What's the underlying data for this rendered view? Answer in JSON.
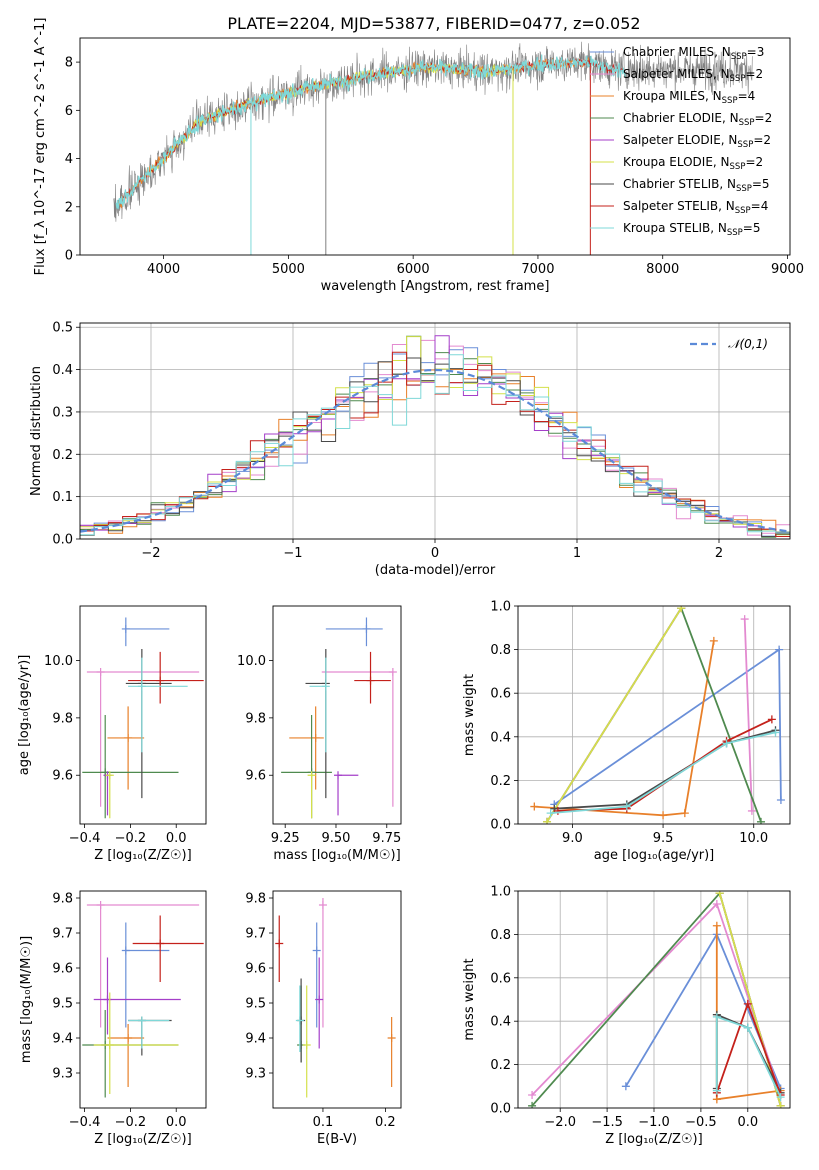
{
  "title": "PLATE=2204, MJD=53877, FIBERID=0477, z=0.052",
  "colors": {
    "Chabrier MILES": "#6a8fd8",
    "Salpeter MILES": "#e38ad0",
    "Kroupa MILES": "#e8802a",
    "Chabrier ELODIE": "#4f8a4f",
    "Salpeter ELODIE": "#a43fc9",
    "Kroupa ELODIE": "#d4e04a",
    "Chabrier STELIB": "#4a4a4a",
    "Salpeter STELIB": "#c4211b",
    "Kroupa STELIB": "#7fd8d8",
    "data": "#808080",
    "normal": "#5b8ad8"
  },
  "chart_data": [
    {
      "id": "spectrum",
      "type": "line",
      "xlabel": "wavelength [Angstrom, rest frame]",
      "ylabel": "Flux [f_λ 10^-17 erg cm^-2 s^-1 A^-1]",
      "xlim": [
        3330,
        9020
      ],
      "ylim": [
        0,
        9
      ],
      "xticks": [
        "4000",
        "5000",
        "6000",
        "7000",
        "8000",
        "9000"
      ],
      "yticks": [
        "0",
        "2",
        "4",
        "6",
        "8"
      ],
      "legend_loc": "upper right",
      "legend": [
        {
          "model": "Chabrier MILES",
          "nssp": "3"
        },
        {
          "model": "Salpeter MILES",
          "nssp": "2"
        },
        {
          "model": "Kroupa MILES",
          "nssp": "4"
        },
        {
          "model": "Chabrier ELODIE",
          "nssp": "2"
        },
        {
          "model": "Salpeter ELODIE",
          "nssp": "2"
        },
        {
          "model": "Kroupa ELODIE",
          "nssp": "2"
        },
        {
          "model": "Chabrier STELIB",
          "nssp": "5"
        },
        {
          "model": "Salpeter STELIB",
          "nssp": "4"
        },
        {
          "model": "Kroupa STELIB",
          "nssp": "5"
        }
      ],
      "continuum": {
        "x": [
          3620,
          3800,
          4000,
          4300,
          4700,
          5200,
          5700,
          6100,
          6600,
          7000,
          7400,
          7600,
          7700
        ],
        "y": [
          2.0,
          3.0,
          4.0,
          5.6,
          6.3,
          7.0,
          7.5,
          7.8,
          7.6,
          7.9,
          8.0,
          7.7,
          7.7
        ]
      },
      "data_range": [
        3600,
        8720
      ],
      "miles_range": [
        3620,
        7410
      ],
      "elodie_range": [
        3900,
        6800
      ],
      "stelib_range": [
        3620,
        7700
      ]
    },
    {
      "id": "residuals",
      "type": "bar",
      "xlabel": "(data-model)/error",
      "ylabel": "Normed distribution",
      "xlim": [
        -2.5,
        2.5
      ],
      "ylim": [
        0,
        0.51
      ],
      "xticks": [
        "−2",
        "−1",
        "0",
        "1",
        "2"
      ],
      "yticks": [
        "0.0",
        "0.1",
        "0.2",
        "0.3",
        "0.4",
        "0.5"
      ],
      "legend": "𝒩(0,1)",
      "bin_width": 0.1
    },
    {
      "id": "age_vs_Z",
      "type": "scatter",
      "xlabel": "Z [log₁₀(Z/Z☉)]",
      "ylabel": "age [log₁₀(age/yr)]",
      "xlim": [
        -0.42,
        0.13
      ],
      "ylim": [
        9.43,
        10.19
      ],
      "xticks": [
        "−0.4",
        "−0.2",
        "0.0"
      ],
      "yticks": [
        "9.6",
        "9.8",
        "10.0"
      ],
      "points": [
        {
          "model": "Chabrier MILES",
          "x": -0.22,
          "xerr": [
            0.0,
            0.19
          ],
          "y": 10.11,
          "yerr": [
            0.06,
            0.04
          ]
        },
        {
          "model": "Salpeter MILES",
          "x": -0.33,
          "xerr": [
            0.06,
            0.43
          ],
          "y": 9.96,
          "yerr": [
            0.47,
            0.0
          ]
        },
        {
          "model": "Kroupa MILES",
          "x": -0.21,
          "xerr": [
            0.09,
            0.07
          ],
          "y": 9.73,
          "yerr": [
            0.18,
            0.11
          ]
        },
        {
          "model": "Chabrier ELODIE",
          "x": -0.31,
          "xerr": [
            0.1,
            0.32
          ],
          "y": 9.61,
          "yerr": [
            0.16,
            0.2
          ]
        },
        {
          "model": "Salpeter ELODIE",
          "x": -0.3,
          "xerr": [
            0.0,
            0.0
          ],
          "y": 9.6,
          "yerr": [
            0.14,
            0.0
          ]
        },
        {
          "model": "Kroupa ELODIE",
          "x": -0.29,
          "xerr": [
            0.0,
            0.0
          ],
          "y": 9.6,
          "yerr": [
            0.15,
            0.0
          ]
        },
        {
          "model": "Chabrier STELIB",
          "x": -0.15,
          "xerr": [
            0.07,
            0.13
          ],
          "y": 9.92,
          "yerr": [
            0.4,
            0.12
          ]
        },
        {
          "model": "Salpeter STELIB",
          "x": -0.07,
          "xerr": [
            0.14,
            0.19
          ],
          "y": 9.93,
          "yerr": [
            0.08,
            0.1
          ]
        },
        {
          "model": "Kroupa STELIB",
          "x": -0.15,
          "xerr": [
            0.06,
            0.2
          ],
          "y": 9.91,
          "yerr": [
            0.23,
            0.1
          ]
        }
      ]
    },
    {
      "id": "age_vs_mass",
      "type": "scatter",
      "xlabel": "mass [log₁₀(M/M☉)]",
      "ylabel": "",
      "xlim": [
        9.19,
        9.82
      ],
      "ylim": [
        9.43,
        10.19
      ],
      "xticks": [
        "9.25",
        "9.50",
        "9.75"
      ],
      "yticks": [
        "9.6",
        "9.8",
        "10.0"
      ],
      "points": [
        {
          "model": "Chabrier MILES",
          "x": 9.65,
          "xerr": [
            0.2,
            0.08
          ],
          "y": 10.11,
          "yerr": [
            0.06,
            0.04
          ]
        },
        {
          "model": "Salpeter MILES",
          "x": 9.78,
          "xerr": [
            0.35,
            0.0
          ],
          "y": 9.96,
          "yerr": [
            0.47,
            0.0
          ]
        },
        {
          "model": "Kroupa MILES",
          "x": 9.4,
          "xerr": [
            0.13,
            0.04
          ],
          "y": 9.73,
          "yerr": [
            0.18,
            0.11
          ]
        },
        {
          "model": "Chabrier ELODIE",
          "x": 9.38,
          "xerr": [
            0.15,
            0.1
          ],
          "y": 9.61,
          "yerr": [
            0.16,
            0.2
          ]
        },
        {
          "model": "Salpeter ELODIE",
          "x": 9.51,
          "xerr": [
            0.0,
            0.1
          ],
          "y": 9.6,
          "yerr": [
            0.14,
            0.0
          ]
        },
        {
          "model": "Kroupa ELODIE",
          "x": 9.38,
          "xerr": [
            0.0,
            0.0
          ],
          "y": 9.6,
          "yerr": [
            0.15,
            0.0
          ]
        },
        {
          "model": "Chabrier STELIB",
          "x": 9.45,
          "xerr": [
            0.1,
            0.0
          ],
          "y": 9.92,
          "yerr": [
            0.4,
            0.12
          ]
        },
        {
          "model": "Salpeter STELIB",
          "x": 9.67,
          "xerr": [
            0.08,
            0.1
          ],
          "y": 9.93,
          "yerr": [
            0.08,
            0.1
          ]
        },
        {
          "model": "Kroupa STELIB",
          "x": 9.45,
          "xerr": [
            0.08,
            0.0
          ],
          "y": 9.91,
          "yerr": [
            0.23,
            0.1
          ]
        }
      ]
    },
    {
      "id": "massweight_vs_age",
      "type": "line",
      "xlabel": "age [log₁₀(age/yr)]",
      "ylabel": "mass weight",
      "xlim": [
        8.7,
        10.2
      ],
      "ylim": [
        0,
        1
      ],
      "xticks": [
        "9.0",
        "9.5",
        "10.0"
      ],
      "yticks": [
        "0.0",
        "0.2",
        "0.4",
        "0.6",
        "0.8",
        "1.0"
      ],
      "series": [
        {
          "model": "Chabrier MILES",
          "x": [
            10.15,
            10.14,
            8.9
          ],
          "y": [
            0.11,
            0.8,
            0.09
          ]
        },
        {
          "model": "Salpeter MILES",
          "x": [
            9.95,
            9.99
          ],
          "y": [
            0.94,
            0.06
          ]
        },
        {
          "model": "Kroupa MILES",
          "x": [
            8.79,
            9.5,
            9.62,
            9.78
          ],
          "y": [
            0.08,
            0.04,
            0.05,
            0.84
          ]
        },
        {
          "model": "Chabrier ELODIE",
          "x": [
            8.86,
            9.6,
            10.04
          ],
          "y": [
            0.01,
            0.99,
            0.01
          ]
        },
        {
          "model": "Salpeter ELODIE",
          "x": [
            8.86,
            9.6
          ],
          "y": [
            0.01,
            0.99
          ]
        },
        {
          "model": "Kroupa ELODIE",
          "x": [
            8.86,
            9.6
          ],
          "y": [
            0.01,
            0.99
          ]
        },
        {
          "model": "Chabrier STELIB",
          "x": [
            8.9,
            9.3,
            9.85,
            10.12
          ],
          "y": [
            0.07,
            0.09,
            0.37,
            0.43
          ]
        },
        {
          "model": "Salpeter STELIB",
          "x": [
            8.92,
            9.3,
            9.85,
            10.1
          ],
          "y": [
            0.06,
            0.07,
            0.38,
            0.48
          ]
        },
        {
          "model": "Kroupa STELIB",
          "x": [
            8.88,
            9.3,
            9.85,
            10.12
          ],
          "y": [
            0.05,
            0.08,
            0.37,
            0.42
          ]
        }
      ]
    },
    {
      "id": "mass_vs_Z",
      "type": "scatter",
      "xlabel": "Z [log₁₀(Z/Z☉)]",
      "ylabel": "mass [log₁₀(M/M☉)]",
      "xlim": [
        -0.42,
        0.13
      ],
      "ylim": [
        9.2,
        9.82
      ],
      "xticks": [
        "−0.4",
        "−0.2",
        "0.0"
      ],
      "yticks": [
        "9.3",
        "9.4",
        "9.5",
        "9.6",
        "9.7",
        "9.8"
      ],
      "points": [
        {
          "model": "Chabrier MILES",
          "x": -0.22,
          "xerr": [
            0.0,
            0.19
          ],
          "y": 9.65,
          "yerr": [
            0.22,
            0.08
          ]
        },
        {
          "model": "Salpeter MILES",
          "x": -0.33,
          "xerr": [
            0.06,
            0.43
          ],
          "y": 9.78,
          "yerr": [
            0.35,
            0.0
          ]
        },
        {
          "model": "Kroupa MILES",
          "x": -0.21,
          "xerr": [
            0.09,
            0.07
          ],
          "y": 9.4,
          "yerr": [
            0.14,
            0.04
          ]
        },
        {
          "model": "Chabrier ELODIE",
          "x": -0.31,
          "xerr": [
            0.1,
            0.32
          ],
          "y": 9.38,
          "yerr": [
            0.15,
            0.1
          ]
        },
        {
          "model": "Salpeter ELODIE",
          "x": -0.3,
          "xerr": [
            0.06,
            0.32
          ],
          "y": 9.51,
          "yerr": [
            0.1,
            0.12
          ]
        },
        {
          "model": "Kroupa ELODIE",
          "x": -0.29,
          "xerr": [
            0.07,
            0.3
          ],
          "y": 9.38,
          "yerr": [
            0.14,
            0.15
          ]
        },
        {
          "model": "Chabrier STELIB",
          "x": -0.15,
          "xerr": [
            0.06,
            0.13
          ],
          "y": 9.45,
          "yerr": [
            0.1,
            0.0
          ]
        },
        {
          "model": "Salpeter STELIB",
          "x": -0.07,
          "xerr": [
            0.12,
            0.19
          ],
          "y": 9.67,
          "yerr": [
            0.11,
            0.08
          ]
        },
        {
          "model": "Kroupa STELIB",
          "x": -0.15,
          "xerr": [
            0.06,
            0.12
          ],
          "y": 9.45,
          "yerr": [
            0.08,
            0.0
          ]
        }
      ]
    },
    {
      "id": "mass_vs_ebv",
      "type": "scatter",
      "xlabel": "E(B-V)",
      "ylabel": "",
      "xlim": [
        0.02,
        0.225
      ],
      "ylim": [
        9.2,
        9.82
      ],
      "xticks": [
        "0.1",
        "0.2"
      ],
      "yticks": [
        "9.3",
        "9.4",
        "9.5",
        "9.6",
        "9.7",
        "9.8"
      ],
      "points": [
        {
          "model": "Chabrier MILES",
          "x": 0.09,
          "xerr": [
            0,
            0
          ],
          "y": 9.65,
          "yerr": [
            0.22,
            0.08
          ]
        },
        {
          "model": "Salpeter MILES",
          "x": 0.1,
          "xerr": [
            0,
            0
          ],
          "y": 9.78,
          "yerr": [
            0.35,
            0.02
          ]
        },
        {
          "model": "Kroupa MILES",
          "x": 0.21,
          "xerr": [
            0,
            0
          ],
          "y": 9.4,
          "yerr": [
            0.14,
            0.06
          ]
        },
        {
          "model": "Chabrier ELODIE",
          "x": 0.065,
          "xerr": [
            0,
            0
          ],
          "y": 9.38,
          "yerr": [
            0.05,
            0.17
          ]
        },
        {
          "model": "Salpeter ELODIE",
          "x": 0.094,
          "xerr": [
            0,
            0
          ],
          "y": 9.51,
          "yerr": [
            0.14,
            0.12
          ]
        },
        {
          "model": "Kroupa ELODIE",
          "x": 0.074,
          "xerr": [
            0,
            0
          ],
          "y": 9.38,
          "yerr": [
            0.15,
            0.17
          ]
        },
        {
          "model": "Chabrier STELIB",
          "x": 0.065,
          "xerr": [
            0,
            0
          ],
          "y": 9.45,
          "yerr": [
            0.12,
            0.12
          ]
        },
        {
          "model": "Salpeter STELIB",
          "x": 0.03,
          "xerr": [
            0,
            0
          ],
          "y": 9.67,
          "yerr": [
            0.11,
            0.08
          ]
        },
        {
          "model": "Kroupa STELIB",
          "x": 0.063,
          "xerr": [
            0,
            0
          ],
          "y": 9.45,
          "yerr": [
            0.09,
            0.1
          ]
        }
      ]
    },
    {
      "id": "massweight_vs_Z",
      "type": "line",
      "xlabel": "Z [log₁₀(Z/Z☉)]",
      "ylabel": "mass weight",
      "xlim": [
        -2.45,
        0.45
      ],
      "ylim": [
        0,
        1
      ],
      "xticks": [
        "−2.0",
        "−1.5",
        "−1.0",
        "−0.5",
        "0.0"
      ],
      "yticks": [
        "0.0",
        "0.2",
        "0.4",
        "0.6",
        "0.8",
        "1.0"
      ],
      "series": [
        {
          "model": "Chabrier MILES",
          "x": [
            -1.3,
            -0.33,
            0.35
          ],
          "y": [
            0.1,
            0.8,
            0.09
          ]
        },
        {
          "model": "Salpeter MILES",
          "x": [
            -2.3,
            -0.33,
            0.35
          ],
          "y": [
            0.06,
            0.94,
            0.06
          ]
        },
        {
          "model": "Kroupa MILES",
          "x": [
            -0.33,
            -0.33,
            0.35
          ],
          "y": [
            0.84,
            0.04,
            0.08
          ]
        },
        {
          "model": "Chabrier ELODIE",
          "x": [
            -2.3,
            -0.3,
            0.35
          ],
          "y": [
            0.01,
            0.99,
            0.01
          ]
        },
        {
          "model": "Salpeter ELODIE",
          "x": [
            -0.3,
            0.35
          ],
          "y": [
            0.99,
            0.01
          ]
        },
        {
          "model": "Kroupa ELODIE",
          "x": [
            -0.3,
            0.35
          ],
          "y": [
            0.99,
            0.01
          ]
        },
        {
          "model": "Chabrier STELIB",
          "x": [
            -0.33,
            -0.33,
            0.0,
            0.35
          ],
          "y": [
            0.09,
            0.43,
            0.37,
            0.07
          ]
        },
        {
          "model": "Salpeter STELIB",
          "x": [
            -0.33,
            0.0,
            0.35
          ],
          "y": [
            0.07,
            0.48,
            0.06
          ]
        },
        {
          "model": "Kroupa STELIB",
          "x": [
            -0.33,
            -0.33,
            0.0,
            0.35
          ],
          "y": [
            0.08,
            0.42,
            0.37,
            0.05
          ]
        }
      ]
    }
  ]
}
